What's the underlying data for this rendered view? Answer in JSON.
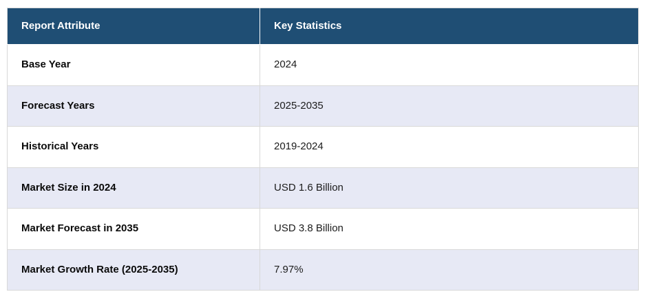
{
  "table": {
    "columns": [
      {
        "label": "Report Attribute"
      },
      {
        "label": "Key Statistics"
      }
    ],
    "rows": [
      {
        "attribute": "Base Year",
        "value": "2024"
      },
      {
        "attribute": "Forecast Years",
        "value": "2025-2035"
      },
      {
        "attribute": "Historical Years",
        "value": "2019-2024"
      },
      {
        "attribute": "Market Size in 2024",
        "value": "USD 1.6 Billion"
      },
      {
        "attribute": "Market Forecast in 2035",
        "value": "USD 3.8 Billion"
      },
      {
        "attribute": "Market Growth Rate (2025-2035)",
        "value": "7.97%"
      }
    ],
    "colors": {
      "header_bg": "#1F4E74",
      "header_text": "#FFFFFF",
      "row_bg": "#FFFFFF",
      "row_alt_bg": "#E7E9F5",
      "border": "#D8D8D8",
      "attr_text": "#0A0A0A",
      "value_text": "#1C1C1C"
    }
  }
}
